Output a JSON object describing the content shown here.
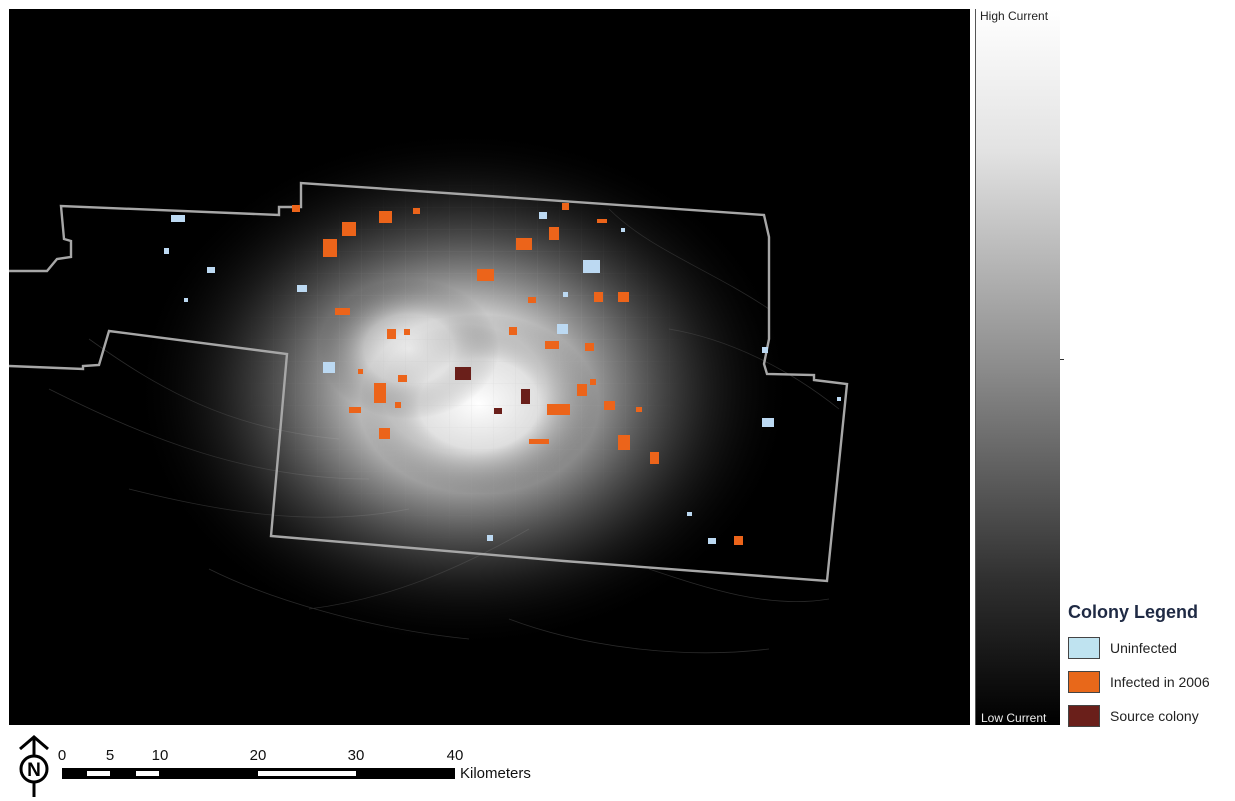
{
  "map": {
    "color_ramp": {
      "high_label": "High Current",
      "low_label": "Low Current"
    },
    "legend": {
      "title": "Colony Legend",
      "items": [
        {
          "label": "Uninfected",
          "color": "#bfe3f0"
        },
        {
          "label": "Infected in 2006",
          "color": "#e8681a"
        },
        {
          "label": "Source colony",
          "color": "#6a1f1a"
        }
      ]
    },
    "scale_bar": {
      "ticks": [
        "0",
        "5",
        "10",
        "20",
        "30",
        "40"
      ],
      "unit": "Kilometers"
    },
    "north_arrow": {
      "label": "N",
      "icon": "north-arrow-icon"
    }
  }
}
